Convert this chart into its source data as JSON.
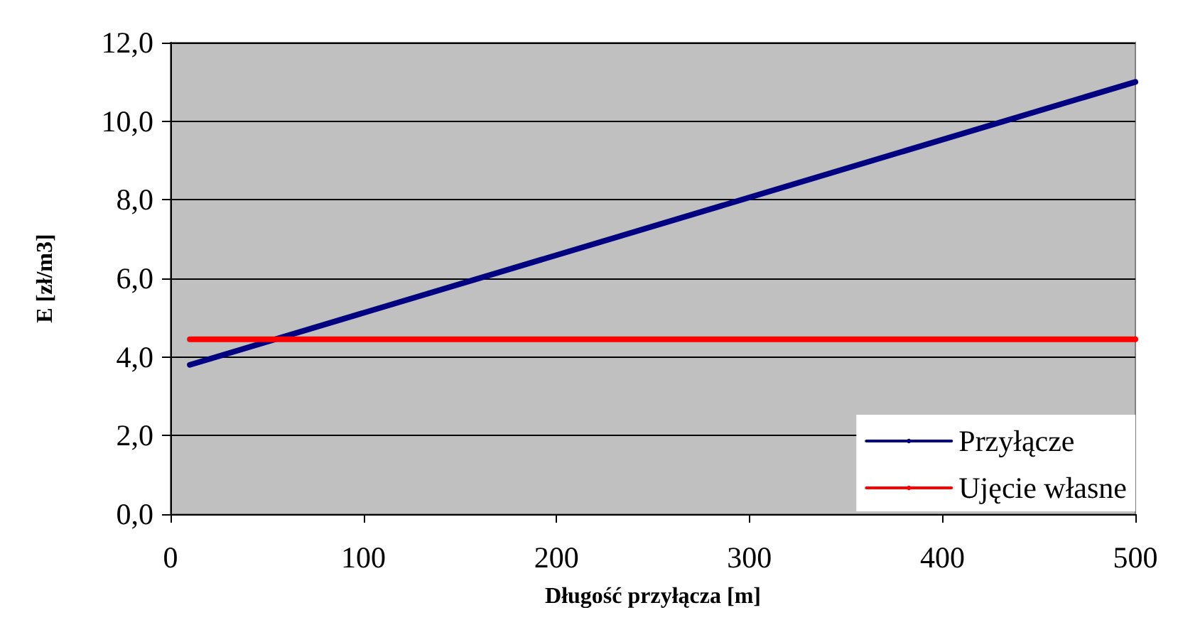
{
  "chart_data": {
    "type": "line",
    "xlabel": "Długość przyłącza [m]",
    "ylabel": "E [zł/m3]",
    "x": [
      10,
      500
    ],
    "series": [
      {
        "name": "Przyłącze",
        "color": "#000080",
        "values": [
          3.8,
          11.0
        ]
      },
      {
        "name": "Ujęcie własne",
        "color": "#ff0000",
        "values": [
          4.45,
          4.45
        ]
      }
    ],
    "xlim": [
      0,
      500
    ],
    "xticks": [
      0,
      100,
      200,
      300,
      400,
      500
    ],
    "ylim": [
      0,
      12
    ],
    "yticks": [
      {
        "value": 0,
        "label": "0,0"
      },
      {
        "value": 2,
        "label": "2,0"
      },
      {
        "value": 4,
        "label": "4,0"
      },
      {
        "value": 6,
        "label": "6,0"
      },
      {
        "value": 8,
        "label": "8,0"
      },
      {
        "value": 10,
        "label": "10,0"
      },
      {
        "value": 12,
        "label": "12,0"
      }
    ],
    "grid": "y",
    "legend": "bottom right",
    "marker": "none",
    "line_style": "solid"
  }
}
